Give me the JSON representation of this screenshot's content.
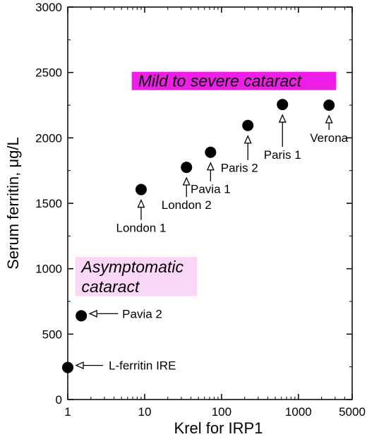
{
  "chart_data": {
    "type": "scatter",
    "title": "",
    "xlabel": "Krel for IRP1",
    "ylabel_prefix": "Serum ferritin, ",
    "ylabel_unit": "μg/L",
    "xscale": "log",
    "xlim": [
      1,
      5000
    ],
    "ylim": [
      0,
      3000
    ],
    "x_ticks": [
      1,
      10,
      100,
      1000,
      5000
    ],
    "x_tick_labels": [
      "1",
      "10",
      "100",
      "1000",
      "5000"
    ],
    "y_ticks": [
      0,
      500,
      1000,
      1500,
      2000,
      2500,
      3000
    ],
    "y_tick_labels": [
      "0",
      "500",
      "1000",
      "1500",
      "2000",
      "2500",
      "3000"
    ],
    "grid": false,
    "points": [
      {
        "label": "L-ferritin IRE",
        "x": 1,
        "y": 245
      },
      {
        "label": "Pavia 2",
        "x": 1.5,
        "y": 640
      },
      {
        "label": "London 1",
        "x": 9,
        "y": 1605
      },
      {
        "label": "London 2",
        "x": 35,
        "y": 1775
      },
      {
        "label": "Pavia 1",
        "x": 72,
        "y": 1890
      },
      {
        "label": "Paris 2",
        "x": 220,
        "y": 2095
      },
      {
        "label": "Paris 1",
        "x": 620,
        "y": 2255
      },
      {
        "label": "Verona",
        "x": 2500,
        "y": 2250
      }
    ],
    "bands": [
      {
        "label": "Mild to severe cataract",
        "color": "#ee1ee6",
        "x0": 6.8,
        "x1": 3100,
        "y0": 2365,
        "y1": 2505,
        "lines": [
          "Mild to severe cataract"
        ]
      },
      {
        "label": "Asymptomatic cataract",
        "color": "#fad7f7",
        "x0": 1.25,
        "x1": 48,
        "y0": 790,
        "y1": 1090,
        "lines": [
          "Asymptomatic",
          "cataract"
        ]
      }
    ],
    "point_color": "#000000"
  }
}
